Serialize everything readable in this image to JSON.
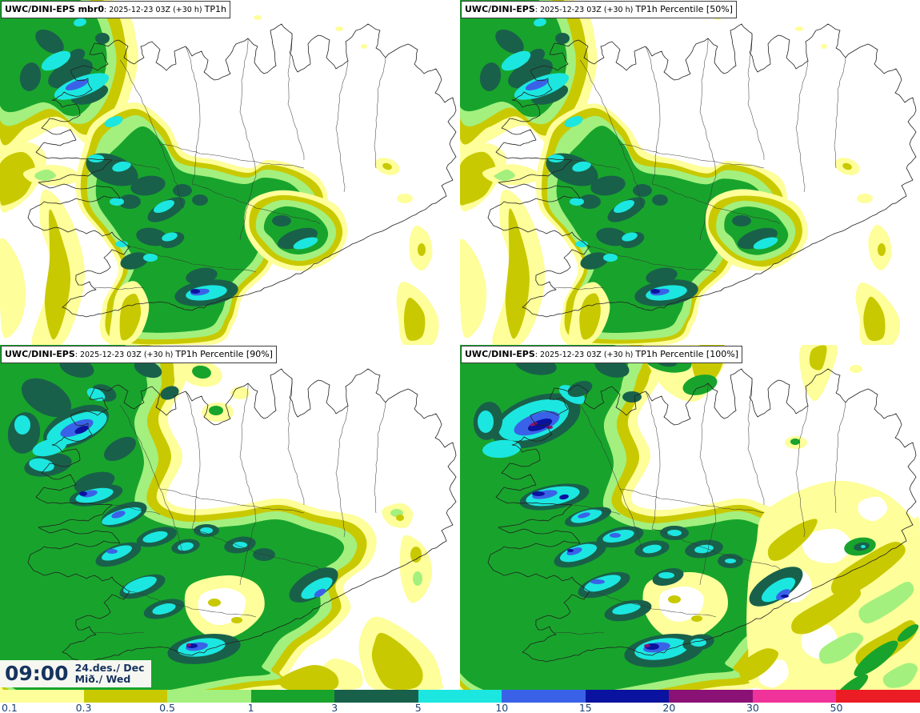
{
  "panels": [
    {
      "id": "member-0",
      "title_bold": "UWC/DINI-EPS mbr0",
      "datetime": ": 2025-12-23 03Z (+30 h) ",
      "suffix": "TP1h"
    },
    {
      "id": "percentile-50",
      "title_bold": "UWC/DINI-EPS",
      "datetime": ": 2025-12-23 03Z (+30 h) ",
      "suffix": "TP1h Percentile [50%]"
    },
    {
      "id": "percentile-90",
      "title_bold": "UWC/DINI-EPS",
      "datetime": ": 2025-12-23 03Z (+30 h) ",
      "suffix": "TP1h Percentile [90%]"
    },
    {
      "id": "percentile-100",
      "title_bold": "UWC/DINI-EPS",
      "datetime": ": 2025-12-23 03Z (+30 h) ",
      "suffix": "TP1h Percentile [100%]"
    }
  ],
  "clock": {
    "time": "09:00",
    "date": "24.des./ Dec",
    "day": "Mið./ Wed"
  },
  "legend": {
    "values": [
      "0.1",
      "0.3",
      "0.5",
      "1",
      "3",
      "5",
      "10",
      "15",
      "20",
      "30",
      "50"
    ],
    "colors": [
      "#FEFE9A",
      "#C9C902",
      "#A3F07E",
      "#18A42C",
      "#19604A",
      "#1BE7E0",
      "#3A62E8",
      "#0A12A0",
      "#8A1175",
      "#F0329B",
      "#EB1C24"
    ],
    "no_precip_color": "#FFFFFF"
  },
  "colors": {
    "tick_label": "#1d3f72",
    "clock_text": "#16335e",
    "coastline": "#222222",
    "inner_borders": "#333333"
  }
}
